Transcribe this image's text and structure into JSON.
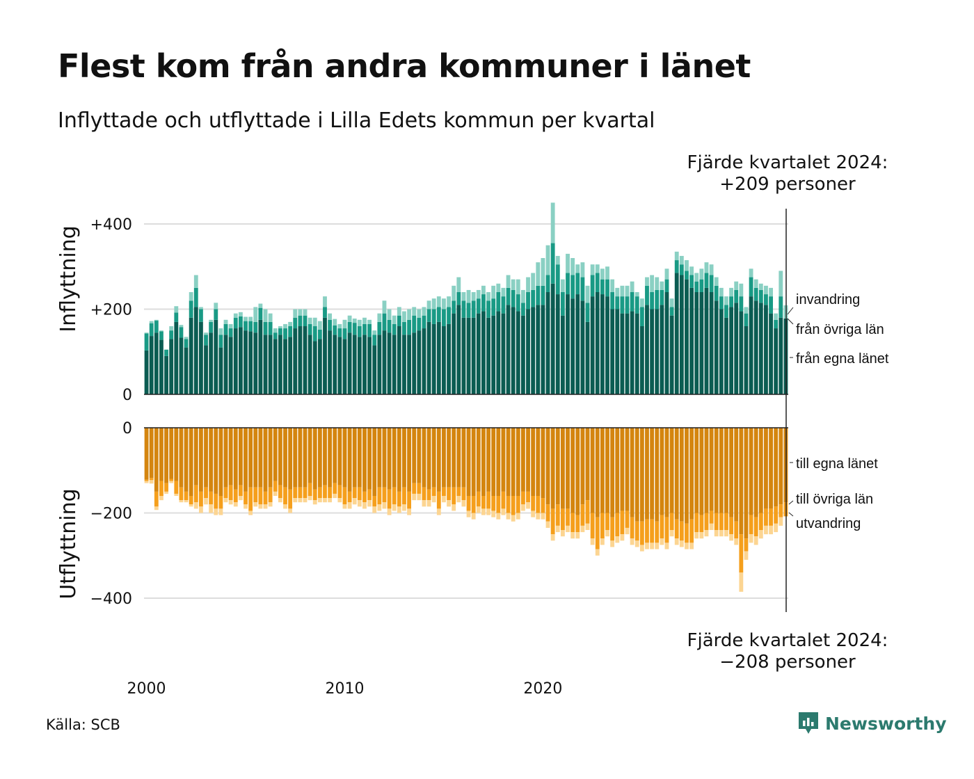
{
  "title": "Flest kom från andra kommuner i länet",
  "subtitle": "Inflyttade och utflyttade i Lilla Edets kommun per kvartal",
  "source": "Källa: SCB",
  "brand": {
    "name": "Newsworthy",
    "icon": "newsworthy-logo-icon",
    "color": "#2c7a6e"
  },
  "annotation_top": {
    "line1": "Fjärde kvartalet 2024:",
    "line2": "+209 personer"
  },
  "annotation_bottom": {
    "line1": "Fjärde kvartalet 2024:",
    "line2": "−208 personer"
  },
  "chart_data": {
    "type": "bar",
    "stacked": true,
    "x_start": 2000,
    "x_unit": "quarter",
    "x_ticks": [
      "2000",
      "2010",
      "2020"
    ],
    "grid": true,
    "panels": [
      {
        "name": "inflyttning",
        "ylabel": "Inflyttning",
        "ylim": [
          0,
          435
        ],
        "yticks": [
          {
            "v": 0,
            "label": "0"
          },
          {
            "v": 200,
            "label": "+200"
          },
          {
            "v": 400,
            "label": "+400"
          }
        ],
        "series": [
          {
            "name": "från egna länet",
            "color": "#0b5c52",
            "values": [
              103,
              137,
              145,
              128,
              90,
              130,
              170,
              133,
              110,
              180,
              205,
              170,
              115,
              145,
              175,
              110,
              140,
              135,
              155,
              158,
              150,
              148,
              145,
              175,
              140,
              140,
              130,
              140,
              130,
              135,
              155,
              160,
              160,
              140,
              125,
              130,
              180,
              150,
              140,
              135,
              130,
              145,
              140,
              135,
              140,
              135,
              115,
              140,
              150,
              145,
              140,
              160,
              140,
              140,
              145,
              150,
              155,
              170,
              165,
              170,
              160,
              165,
              190,
              210,
              180,
              180,
              180,
              190,
              195,
              180,
              185,
              195,
              190,
              210,
              205,
              195,
              185,
              200,
              205,
              210,
              210,
              240,
              260,
              235,
              185,
              235,
              225,
              235,
              220,
              170,
              230,
              240,
              235,
              230,
              200,
              200,
              190,
              190,
              195,
              190,
              160,
              210,
              200,
              200,
              210,
              240,
              185,
              285,
              280,
              270,
              250,
              240,
              240,
              250,
              240,
              220,
              200,
              180,
              205,
              215,
              195,
              160,
              230,
              220,
              215,
              210,
              190,
              155,
              180,
              178
            ]
          },
          {
            "name": "från övriga län",
            "color": "#199a85",
            "values": [
              40,
              30,
              28,
              20,
              15,
              20,
              22,
              25,
              20,
              40,
              45,
              30,
              25,
              25,
              25,
              30,
              25,
              20,
              25,
              25,
              22,
              24,
              25,
              28,
              30,
              30,
              15,
              15,
              25,
              25,
              25,
              25,
              25,
              25,
              35,
              22,
              25,
              25,
              22,
              20,
              25,
              25,
              28,
              25,
              25,
              30,
              25,
              30,
              40,
              30,
              25,
              25,
              30,
              35,
              40,
              30,
              30,
              30,
              35,
              35,
              40,
              40,
              30,
              30,
              40,
              35,
              40,
              35,
              40,
              40,
              40,
              45,
              40,
              40,
              40,
              40,
              30,
              40,
              40,
              45,
              45,
              40,
              95,
              70,
              55,
              50,
              55,
              50,
              55,
              45,
              50,
              45,
              35,
              40,
              40,
              30,
              40,
              40,
              45,
              40,
              45,
              45,
              40,
              45,
              35,
              30,
              20,
              30,
              25,
              20,
              30,
              25,
              30,
              35,
              40,
              35,
              30,
              30,
              25,
              30,
              35,
              30,
              45,
              30,
              30,
              25,
              40,
              20,
              50,
              0
            ]
          },
          {
            "name": "invandring",
            "color": "#8ad0c3",
            "values": [
              2,
              5,
              2,
              2,
              0,
              10,
              15,
              5,
              5,
              20,
              30,
              5,
              5,
              5,
              15,
              15,
              10,
              10,
              10,
              10,
              10,
              10,
              35,
              10,
              30,
              20,
              10,
              5,
              10,
              10,
              20,
              15,
              15,
              15,
              20,
              20,
              25,
              15,
              15,
              10,
              20,
              15,
              10,
              15,
              15,
              10,
              10,
              20,
              30,
              25,
              20,
              20,
              25,
              25,
              20,
              20,
              20,
              20,
              25,
              25,
              25,
              25,
              35,
              35,
              20,
              30,
              20,
              20,
              20,
              20,
              30,
              20,
              20,
              30,
              25,
              35,
              30,
              35,
              40,
              55,
              65,
              70,
              95,
              20,
              30,
              45,
              40,
              20,
              35,
              40,
              25,
              20,
              25,
              30,
              30,
              20,
              25,
              25,
              25,
              10,
              20,
              20,
              40,
              30,
              20,
              25,
              20,
              20,
              20,
              25,
              20,
              20,
              25,
              25,
              25,
              20,
              20,
              20,
              20,
              20,
              30,
              15,
              20,
              20,
              15,
              20,
              20,
              15,
              60,
              31
            ]
          }
        ],
        "end_labels": [
          "invandring",
          "från övriga län",
          "från egna länet"
        ]
      },
      {
        "name": "utflyttning",
        "ylabel": "Utflyttning",
        "ylim": [
          -435,
          0
        ],
        "yticks": [
          {
            "v": 0,
            "label": "0"
          },
          {
            "v": -200,
            "label": "−200"
          },
          {
            "v": -400,
            "label": "−400"
          }
        ],
        "series": [
          {
            "name": "till egna länet",
            "color": "#d4850f",
            "values": [
              -122,
              -118,
              -150,
              -125,
              -130,
              -120,
              -125,
              -140,
              -150,
              -160,
              -135,
              -150,
              -140,
              -150,
              -155,
              -160,
              -140,
              -135,
              -145,
              -135,
              -150,
              -140,
              -140,
              -140,
              -150,
              -140,
              -125,
              -135,
              -140,
              -145,
              -140,
              -140,
              -140,
              -130,
              -145,
              -140,
              -135,
              -140,
              -130,
              -135,
              -140,
              -150,
              -140,
              -140,
              -150,
              -145,
              -160,
              -140,
              -140,
              -145,
              -140,
              -150,
              -140,
              -150,
              -130,
              -130,
              -140,
              -145,
              -140,
              -150,
              -140,
              -140,
              -140,
              -140,
              -140,
              -160,
              -160,
              -150,
              -160,
              -150,
              -160,
              -160,
              -150,
              -160,
              -160,
              -160,
              -150,
              -150,
              -160,
              -160,
              -165,
              -180,
              -190,
              -180,
              -190,
              -190,
              -200,
              -205,
              -180,
              -170,
              -200,
              -210,
              -200,
              -200,
              -210,
              -200,
              -195,
              -195,
              -210,
              -220,
              -220,
              -215,
              -215,
              -220,
              -205,
              -210,
              -200,
              -215,
              -220,
              -225,
              -215,
              -200,
              -205,
              -200,
              -195,
              -200,
              -200,
              -200,
              -210,
              -220,
              -250,
              -260,
              -205,
              -210,
              -200,
              -190,
              -190,
              -185,
              -180,
              -175
            ]
          },
          {
            "name": "till övriga län",
            "color": "#f59f1c",
            "values": [
              -3,
              -5,
              -35,
              -35,
              -20,
              -5,
              -30,
              -30,
              -20,
              -20,
              -40,
              -35,
              -25,
              -30,
              -35,
              -30,
              -25,
              -35,
              -30,
              -25,
              -30,
              -55,
              -35,
              -40,
              -30,
              -35,
              -25,
              -30,
              -40,
              -45,
              -25,
              -25,
              -25,
              -30,
              -25,
              -25,
              -30,
              -25,
              -25,
              -30,
              -40,
              -25,
              -25,
              -30,
              -25,
              -25,
              -25,
              -40,
              -35,
              -45,
              -40,
              -35,
              -40,
              -40,
              -25,
              -25,
              -30,
              -25,
              -20,
              -40,
              -20,
              -30,
              -40,
              -20,
              -30,
              -35,
              -40,
              -35,
              -30,
              -40,
              -35,
              -40,
              -40,
              -40,
              -45,
              -40,
              -30,
              -25,
              -35,
              -40,
              -35,
              -40,
              -60,
              -50,
              -50,
              -40,
              -45,
              -40,
              -50,
              -55,
              -60,
              -75,
              -60,
              -40,
              -55,
              -55,
              -55,
              -40,
              -50,
              -45,
              -55,
              -55,
              -55,
              -50,
              -55,
              -60,
              -40,
              -45,
              -45,
              -45,
              -55,
              -45,
              -40,
              -40,
              -30,
              -40,
              -40,
              -40,
              -40,
              -40,
              -90,
              -30,
              -45,
              -45,
              -40,
              -40,
              -40,
              -40,
              -30,
              -33
            ]
          },
          {
            "name": "utvandring",
            "color": "#fcd592",
            "values": [
              -5,
              -8,
              -8,
              -10,
              -5,
              -5,
              -5,
              -5,
              -5,
              -5,
              -15,
              -15,
              -15,
              -20,
              -15,
              -15,
              -10,
              -10,
              -10,
              -10,
              -10,
              -10,
              -10,
              -10,
              -10,
              -10,
              -10,
              -10,
              -10,
              -10,
              -10,
              -10,
              -10,
              -10,
              -10,
              -10,
              -10,
              -10,
              -10,
              -10,
              -10,
              -15,
              -15,
              -15,
              -15,
              -15,
              -15,
              -15,
              -15,
              -15,
              -15,
              -15,
              -15,
              -15,
              -15,
              -15,
              -15,
              -15,
              -15,
              -15,
              -15,
              -15,
              -15,
              -15,
              -15,
              -15,
              -15,
              -15,
              -15,
              -15,
              -15,
              -15,
              -15,
              -15,
              -15,
              -15,
              -15,
              -15,
              -15,
              -15,
              -15,
              -15,
              -15,
              -15,
              -15,
              -15,
              -15,
              -15,
              -15,
              -15,
              -15,
              -15,
              -15,
              -15,
              -15,
              -15,
              -15,
              -15,
              -15,
              -15,
              -15,
              -15,
              -15,
              -15,
              -15,
              -15,
              -15,
              -15,
              -15,
              -15,
              -15,
              -15,
              -15,
              -15,
              -15,
              -15,
              -15,
              -15,
              -15,
              -15,
              -45,
              -20,
              -20,
              -20,
              -20,
              -20,
              -20,
              -20,
              -20,
              0
            ]
          }
        ],
        "end_labels": [
          "till egna länet",
          "till övriga län",
          "utvandring"
        ]
      }
    ]
  }
}
